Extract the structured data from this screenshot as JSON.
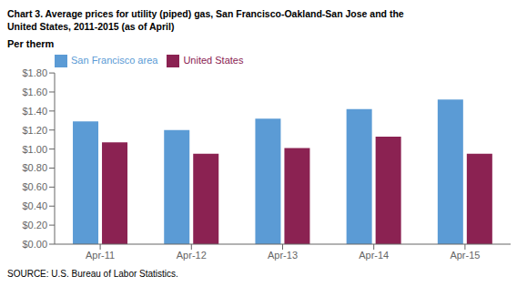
{
  "chart_data": {
    "type": "bar",
    "title": "Chart 3. Average prices for utility (piped) gas, San Francisco-Oakland-San Jose and the",
    "subtitle": "United States, 2011-2015  (as of April)",
    "ylabel": "Per therm",
    "annotations": [
      "SOURCE: U.S. Bureau of Labor Statistics."
    ],
    "categories": [
      "Apr-11",
      "Apr-12",
      "Apr-13",
      "Apr-14",
      "Apr-15"
    ],
    "series": [
      {
        "name": "San Francisco area",
        "color": "#5B9BD5",
        "values": [
          1.29,
          1.2,
          1.32,
          1.42,
          1.52
        ]
      },
      {
        "name": "United States",
        "color": "#8B2252",
        "values": [
          1.07,
          0.95,
          1.01,
          1.13,
          0.95
        ]
      }
    ],
    "ylim": [
      0.0,
      1.8
    ],
    "yticks": [
      {
        "value": 0.0,
        "label": "$0.00"
      },
      {
        "value": 0.2,
        "label": "$0.20"
      },
      {
        "value": 0.4,
        "label": "$0.40"
      },
      {
        "value": 0.6,
        "label": "$0.60"
      },
      {
        "value": 0.8,
        "label": "$0.80"
      },
      {
        "value": 1.0,
        "label": "$1.00"
      },
      {
        "value": 1.2,
        "label": "$1.20"
      },
      {
        "value": 1.4,
        "label": "$1.40"
      },
      {
        "value": 1.6,
        "label": "$1.60"
      },
      {
        "value": 1.8,
        "label": "$1.80"
      }
    ],
    "legend": "upper left",
    "grid": false
  }
}
